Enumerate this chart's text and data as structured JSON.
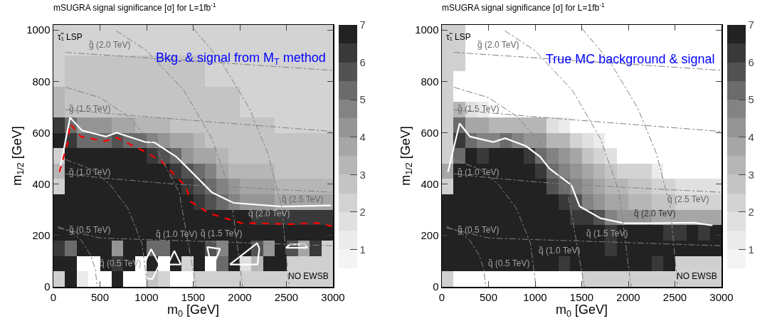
{
  "chart_data": [
    {
      "type": "heatmap",
      "title": "mSUGRA signal significance [σ] for L=1fb$^{-1}$",
      "xlabel": "m$_{0}$ [GeV]",
      "ylabel": "m$_{1/2}$ [GeV]",
      "x": [
        62.5,
        187.5,
        312.5,
        437.5,
        562.5,
        687.5,
        812.5,
        937.5,
        1062.5,
        1187.5,
        1312.5,
        1437.5,
        1562.5,
        1687.5,
        1812.5,
        1937.5,
        2062.5,
        2187.5,
        2312.5,
        2437.5,
        2562.5,
        2687.5,
        2812.5,
        2937.5
      ],
      "y": [
        990,
        930,
        870,
        810,
        750,
        690,
        630,
        570,
        510,
        450,
        390,
        330,
        270,
        210,
        150,
        90,
        30
      ],
      "cells": [
        [
          null,
          2.25,
          2.25,
          2.25,
          2.25,
          2.25,
          2.25,
          2.25,
          2.25,
          2.25,
          2.25,
          2.25,
          2.25,
          2.25,
          2.25,
          2.25,
          2.25,
          2.25,
          2.25,
          2.25,
          2.25,
          2.25,
          2.25,
          2.25
        ],
        [
          null,
          2.25,
          2.25,
          2.25,
          2.25,
          2.25,
          2.25,
          2.25,
          2.25,
          2.25,
          2.25,
          2.25,
          2.25,
          2.25,
          2.25,
          2.25,
          2.25,
          2.25,
          2.25,
          2.25,
          2.25,
          2.25,
          2.25,
          2.25
        ],
        [
          null,
          2.75,
          2.75,
          2.75,
          2.75,
          2.75,
          2.75,
          2.75,
          2.75,
          2.75,
          2.75,
          2.75,
          2.75,
          2.25,
          2.25,
          2.25,
          2.25,
          2.25,
          2.25,
          2.25,
          2.25,
          2.25,
          2.25,
          2.25
        ],
        [
          null,
          2.75,
          2.75,
          2.75,
          2.75,
          2.75,
          2.75,
          2.75,
          2.75,
          2.75,
          2.75,
          2.75,
          2.75,
          2.25,
          2.25,
          2.25,
          2.25,
          2.25,
          2.25,
          2.25,
          2.25,
          2.25,
          2.25,
          2.25
        ],
        [
          3.25,
          2.75,
          2.75,
          2.75,
          2.75,
          2.75,
          2.75,
          2.75,
          2.75,
          2.75,
          2.75,
          2.75,
          2.75,
          2.75,
          2.75,
          2.75,
          2.25,
          2.25,
          2.25,
          2.25,
          2.25,
          2.25,
          2.25,
          2.25
        ],
        [
          3.25,
          2.75,
          2.75,
          2.75,
          2.75,
          2.75,
          2.75,
          2.75,
          2.75,
          2.75,
          2.75,
          2.75,
          2.75,
          2.75,
          2.75,
          2.75,
          2.25,
          2.25,
          2.25,
          2.25,
          2.25,
          2.25,
          2.25,
          2.25
        ],
        [
          6.25,
          5.25,
          4.25,
          4.25,
          4.25,
          3.75,
          3.75,
          3.25,
          3.25,
          3.25,
          2.75,
          2.75,
          2.75,
          2.75,
          2.75,
          2.75,
          2.75,
          2.75,
          2.75,
          2.25,
          2.25,
          2.25,
          2.25,
          2.25
        ],
        [
          6.75,
          6.25,
          5.25,
          5.25,
          5.25,
          5.75,
          5.25,
          5.25,
          4.75,
          4.25,
          3.75,
          3.75,
          3.25,
          2.75,
          2.75,
          2.75,
          2.75,
          2.75,
          2.75,
          2.75,
          2.75,
          2.75,
          2.75,
          2.75
        ],
        [
          null,
          7,
          7,
          7,
          7,
          7,
          7,
          7,
          6.25,
          5.75,
          5.25,
          4.25,
          3.75,
          3.75,
          3.25,
          2.75,
          2.75,
          2.75,
          2.75,
          2.75,
          2.75,
          2.75,
          2.75,
          2.75
        ],
        [
          3.25,
          7,
          7,
          7,
          7,
          7,
          7,
          7,
          7,
          7,
          6.25,
          5.75,
          5.25,
          4.75,
          3.75,
          3.25,
          3.25,
          3.25,
          3.25,
          2.75,
          2.75,
          2.75,
          2.75,
          2.75
        ],
        [
          null,
          7,
          7,
          7,
          7,
          7,
          7,
          7,
          7,
          7,
          7,
          6.25,
          5.75,
          5.25,
          4.75,
          4.25,
          3.75,
          3.75,
          3.75,
          3.25,
          3.25,
          3.25,
          3.25,
          3.25
        ],
        [
          7,
          7,
          7,
          7,
          7,
          7,
          7,
          7,
          7,
          7,
          7,
          7,
          6.25,
          5.75,
          5.25,
          4.75,
          4.25,
          4.25,
          4.25,
          3.75,
          3.75,
          3.75,
          3.75,
          3.75
        ],
        [
          7,
          7,
          7,
          7,
          7,
          7,
          7,
          7,
          7,
          7,
          7,
          7,
          7,
          7,
          7,
          6.75,
          6.75,
          6.25,
          6.25,
          6.25,
          6.25,
          6.25,
          6.25,
          6.25
        ],
        [
          7,
          7,
          7,
          7,
          7,
          7,
          7,
          7,
          7,
          7,
          7,
          7,
          7,
          7,
          7,
          7,
          7,
          7,
          7,
          7,
          7,
          7,
          7,
          7
        ],
        [
          6.25,
          5.25,
          7,
          7,
          7,
          4.25,
          7,
          6.75,
          5.25,
          5.25,
          6.75,
          7,
          7,
          5.75,
          4.75,
          7,
          6.75,
          5.75,
          4.25,
          7,
          5.75,
          3.75,
          6.25,
          null
        ],
        [
          7,
          7,
          0.25,
          0.25,
          7,
          6.25,
          7,
          0.25,
          7,
          0.25,
          7,
          2.25,
          7,
          0.25,
          5.25,
          7,
          1.75,
          3.25,
          7,
          7,
          null,
          null,
          null,
          null
        ],
        [
          null,
          7,
          1.25,
          0.25,
          0.25,
          7,
          0.25,
          0.25,
          2.75,
          2.25,
          0.25,
          0.25,
          null,
          null,
          null,
          null,
          null,
          null,
          null,
          null,
          null,
          null,
          null,
          null
        ]
      ],
      "colors": [
        "#ffffff",
        "#f4f4f4",
        "#ebebeb",
        "#e0e0e0",
        "#d3d3d3",
        "#c4c4c4",
        "#b6b6b6",
        "#a6a6a6",
        "#959595",
        "#838383",
        "#6b6b6b",
        "#525252",
        "#393939",
        "#222222"
      ],
      "clim": [
        0,
        7
      ],
      "cticks": [
        1,
        2,
        3,
        4,
        5,
        6,
        7
      ],
      "xlim": [
        0,
        3000
      ],
      "xticks": [
        0,
        500,
        1000,
        1500,
        2000,
        2500,
        3000
      ],
      "ylim": [
        0,
        1020
      ],
      "yticks": [
        0,
        200,
        400,
        600,
        800,
        1000
      ],
      "series": [
        {
          "type": "line",
          "color": "#ffffff",
          "line_style": "solid",
          "x": [
            64,
            179,
            307,
            563,
            678,
            985,
            1087,
            1240,
            1318,
            1624,
            1701,
            1931,
            2443,
            2980
          ],
          "values": [
            447,
            659,
            609,
            585,
            600,
            564,
            562,
            525,
            507,
            396,
            368,
            327,
            313,
            317
          ]
        },
        {
          "type": "line",
          "color": "#ffffff",
          "line_style": "solid",
          "x": [
            1228,
            1298,
            1368
          ],
          "values": [
            87,
            140,
            87
          ]
        },
        {
          "type": "line",
          "color": "#ffffff",
          "line_style": "solid",
          "x": [
            1228,
            1368
          ],
          "values": [
            87,
            87
          ]
        },
        {
          "type": "line",
          "color": "#ffffff",
          "line_style": "solid",
          "x": [
            1650,
            1790
          ],
          "values": [
            155,
            148
          ]
        },
        {
          "type": "line",
          "color": "#ffffff",
          "line_style": "solid",
          "x": [
            1650,
            1690,
            1720,
            1790
          ],
          "values": [
            155,
            87,
            87,
            148
          ]
        },
        {
          "type": "line",
          "color": "#ffffff",
          "line_style": "solid",
          "x": [
            1893,
            2185,
            2210
          ],
          "values": [
            87,
            170,
            150
          ]
        },
        {
          "type": "line",
          "color": "#ffffff",
          "line_style": "solid",
          "x": [
            1893,
            2190,
            2210
          ],
          "values": [
            87,
            87,
            150
          ]
        },
        {
          "type": "line",
          "color": "#ffffff",
          "line_style": "solid",
          "x": [
            2494,
            2540,
            2700,
            2725
          ],
          "values": [
            152,
            165,
            165,
            152
          ]
        },
        {
          "type": "line",
          "color": "#ffffff",
          "line_style": "solid",
          "x": [
            2494,
            2725
          ],
          "values": [
            152,
            152
          ]
        },
        {
          "type": "line",
          "color": "#ffffff",
          "line_style": "solid",
          "x": [
            934,
            1000,
            1049,
            1138
          ],
          "values": [
            36,
            110,
            147,
            87
          ]
        },
        {
          "type": "line",
          "color": "#ffffff",
          "line_style": "solid",
          "x": [
            934,
            1061,
            1138
          ],
          "values": [
            36,
            30,
            87
          ]
        },
        {
          "type": "line",
          "color": "#ff0000",
          "line_style": "dashed",
          "x": [
            64,
            153,
            179,
            294,
            550,
            678,
            985,
            1164,
            1318,
            1420,
            1471,
            1676,
            2009,
            2571,
            2827,
            3000
          ],
          "values": [
            447,
            562,
            636,
            585,
            567,
            581,
            526,
            488,
            428,
            392,
            332,
            286,
            249,
            244,
            249,
            235
          ]
        },
        {
          "type": "line",
          "color": "#808080",
          "line_style": "dotted",
          "x": [
            50,
            200,
            300,
            400,
            450,
            470
          ],
          "values": [
            234,
            213,
            181,
            123,
            68,
            0
          ]
        },
        {
          "type": "line",
          "color": "#808080",
          "line_style": "dotted",
          "x": [
            130,
            400,
            600,
            800,
            950,
            1010
          ],
          "values": [
            496,
            459,
            402,
            305,
            170,
            0
          ]
        },
        {
          "type": "line",
          "color": "#808080",
          "line_style": "dotted",
          "x": [
            130,
            500,
            800,
            1100,
            1350,
            1530
          ],
          "values": [
            777,
            737,
            665,
            542,
            367,
            0
          ]
        },
        {
          "type": "line",
          "color": "#808080",
          "line_style": "dotted",
          "x": [
            675,
            1000,
            1400,
            1700,
            1900,
            2030
          ],
          "values": [
            997,
            920,
            765,
            578,
            372,
            0
          ]
        },
        {
          "type": "line",
          "color": "#808080",
          "line_style": "dotted",
          "x": [
            1500,
            1800,
            2100,
            2300,
            2450,
            2530
          ],
          "values": [
            1007,
            878,
            697,
            521,
            312,
            0
          ]
        },
        {
          "type": "line",
          "color": "#808080",
          "line_style": "dotted",
          "x": [
            50,
            500,
            3000
          ],
          "values": [
            230,
            190,
            160
          ]
        },
        {
          "type": "line",
          "color": "#808080",
          "line_style": "dotted",
          "x": [
            130,
            500,
            1300,
            3000
          ],
          "values": [
            440,
            425,
            400,
            368
          ]
        },
        {
          "type": "line",
          "color": "#808080",
          "line_style": "dotted",
          "x": [
            130,
            900,
            3000
          ],
          "values": [
            690,
            665,
            605
          ]
        },
        {
          "type": "line",
          "color": "#808080",
          "line_style": "dotted",
          "x": [
            130,
            3000
          ],
          "values": [
            913,
            843
          ]
        }
      ],
      "annotations": [
        "Bkg. & signal from M$_{T}$ method",
        "τ̃₁ LSP",
        "g̃ (2.0 TeV)",
        "g̃ (1.5 TeV)",
        "g̃ (1.0 TeV)",
        "g̃ (0.5 TeV)",
        "q̃ (0.5 TeV)",
        "q̃ (1.0 TeV)",
        "q̃ (1.5 TeV)",
        "q̃ (2.0 TeV)",
        "q̃ (2.5 TeV)",
        "NO EWSB"
      ]
    },
    {
      "type": "heatmap",
      "title": "mSUGRA signal significance [σ] for L=1fb$^{-1}$",
      "xlabel": "m$_{0}$ [GeV]",
      "ylabel": "m$_{1/2}$ [GeV]",
      "x": [
        62.5,
        187.5,
        312.5,
        437.5,
        562.5,
        687.5,
        812.5,
        937.5,
        1062.5,
        1187.5,
        1312.5,
        1437.5,
        1562.5,
        1687.5,
        1812.5,
        1937.5,
        2062.5,
        2187.5,
        2312.5,
        2437.5,
        2562.5,
        2687.5,
        2812.5,
        2937.5
      ],
      "y": [
        990,
        930,
        870,
        810,
        750,
        690,
        630,
        570,
        510,
        450,
        390,
        330,
        270,
        210,
        150,
        90,
        30
      ],
      "cells": [
        [
          null,
          null,
          0.25,
          0.25,
          0.25,
          0.25,
          0.25,
          0.25,
          0.25,
          0.25,
          0.25,
          0.25,
          0.25,
          0.25,
          0.25,
          0.25,
          0.25,
          0.25,
          0.25,
          0.25,
          0.25,
          0.25,
          0.25,
          0.25
        ],
        [
          null,
          null,
          0.25,
          0.25,
          0.25,
          0.25,
          0.25,
          0.25,
          0.25,
          0.25,
          0.25,
          0.25,
          0.25,
          0.25,
          0.25,
          0.25,
          0.25,
          0.25,
          0.25,
          0.25,
          0.25,
          0.25,
          0.25,
          0.25
        ],
        [
          null,
          null,
          0.25,
          0.25,
          0.25,
          0.25,
          0.25,
          0.25,
          0.25,
          0.25,
          0.25,
          0.25,
          0.25,
          0.25,
          0.25,
          0.25,
          0.25,
          0.25,
          0.25,
          0.25,
          0.25,
          0.25,
          0.25,
          0.25
        ],
        [
          null,
          0.25,
          0.25,
          0.25,
          0.25,
          0.25,
          0.25,
          0.25,
          0.25,
          0.25,
          0.25,
          0.25,
          0.25,
          0.25,
          0.25,
          0.25,
          0.25,
          0.25,
          0.25,
          0.25,
          0.25,
          0.25,
          0.25,
          0.25
        ],
        [
          null,
          0.25,
          0.25,
          0.25,
          0.25,
          0.25,
          0.25,
          0.25,
          0.25,
          0.25,
          0.25,
          0.25,
          0.25,
          0.25,
          0.25,
          0.25,
          0.25,
          0.25,
          0.25,
          0.25,
          0.25,
          0.25,
          0.25,
          0.25
        ],
        [
          null,
          3.25,
          1.75,
          1.25,
          0.25,
          0.25,
          0.25,
          0.25,
          0.25,
          0.25,
          0.25,
          0.25,
          0.25,
          0.25,
          0.25,
          0.25,
          0.25,
          0.25,
          0.25,
          0.25,
          0.25,
          0.25,
          0.25,
          0.25
        ],
        [
          null,
          5.25,
          3.75,
          3.75,
          3.25,
          3.25,
          3.25,
          3.25,
          3.25,
          1.75,
          1.25,
          0.25,
          0.25,
          0.25,
          0.25,
          0.25,
          0.25,
          0.25,
          0.25,
          0.25,
          0.25,
          0.25,
          0.25,
          0.25
        ],
        [
          null,
          6.25,
          5.25,
          4.75,
          4.75,
          5.25,
          4.75,
          4.25,
          4.25,
          3.25,
          3.25,
          2.25,
          1.75,
          1.25,
          0.25,
          0.25,
          0.25,
          0.25,
          0.25,
          0.25,
          0.25,
          0.25,
          0.25,
          0.25
        ],
        [
          null,
          5.25,
          7,
          6.25,
          7,
          7,
          6.75,
          6.25,
          5.25,
          4.75,
          4.25,
          3.75,
          2.75,
          2.25,
          1.75,
          0.25,
          0.25,
          0.25,
          0.25,
          0.25,
          0.25,
          0.25,
          0.25,
          0.25
        ],
        [
          3.75,
          7,
          7,
          7,
          7,
          7,
          7,
          7,
          6.25,
          5.25,
          4.75,
          4.25,
          3.75,
          3.25,
          2.75,
          2.25,
          2.25,
          2.25,
          1.25,
          0.25,
          0.25,
          0.25,
          0.25,
          0.25
        ],
        [
          null,
          7,
          7,
          7,
          7,
          7,
          7,
          7,
          7,
          5.75,
          5.25,
          4.75,
          4.25,
          3.75,
          3.25,
          3.25,
          2.75,
          2.75,
          2.25,
          2.25,
          1.75,
          1.75,
          1.75,
          1.75
        ],
        [
          7,
          7,
          7,
          7,
          7,
          7,
          7,
          7,
          7,
          7,
          6.25,
          5.75,
          4.75,
          4.25,
          3.75,
          3.75,
          3.25,
          3.25,
          2.75,
          2.75,
          2.25,
          2.25,
          2.25,
          2.25
        ],
        [
          7,
          7,
          7,
          7,
          7,
          7,
          7,
          7,
          7,
          7,
          7,
          6.25,
          6.25,
          5.75,
          4.75,
          4.25,
          4.25,
          4.25,
          3.75,
          3.75,
          3.75,
          3.75,
          3.75,
          3.75
        ],
        [
          7,
          7,
          7,
          7,
          7,
          7,
          7,
          7,
          7,
          7,
          7,
          7,
          7,
          7,
          6.25,
          7,
          7,
          7,
          7,
          6.25,
          6.25,
          7,
          6.25,
          7
        ],
        [
          7,
          7,
          7,
          7,
          7,
          7,
          7,
          7,
          7,
          7,
          7,
          7,
          7,
          7,
          6.25,
          7,
          7,
          7,
          7,
          7,
          7,
          7,
          7,
          7
        ],
        [
          7,
          7,
          7,
          7,
          7,
          7,
          7,
          7,
          7,
          7,
          6.25,
          7,
          7,
          7,
          7,
          7,
          7,
          7,
          6.25,
          7,
          null,
          null,
          null,
          null
        ],
        [
          null,
          0.25,
          0.25,
          0.25,
          0.25,
          0.25,
          0.25,
          0.25,
          0.25,
          0.25,
          0.25,
          0.25,
          null,
          null,
          null,
          null,
          null,
          null,
          null,
          null,
          null,
          null,
          null,
          null
        ]
      ],
      "colors": [
        "#ffffff",
        "#f4f4f4",
        "#ebebeb",
        "#e0e0e0",
        "#d3d3d3",
        "#c4c4c4",
        "#b6b6b6",
        "#a6a6a6",
        "#959595",
        "#838383",
        "#6b6b6b",
        "#525252",
        "#393939",
        "#222222"
      ],
      "clim": [
        0,
        7
      ],
      "cticks": [
        1,
        2,
        3,
        4,
        5,
        6,
        7
      ],
      "xlim": [
        0,
        3000
      ],
      "xticks": [
        0,
        500,
        1000,
        1500,
        2000,
        2500,
        3000
      ],
      "ylim": [
        0,
        1020
      ],
      "yticks": [
        0,
        200,
        400,
        600,
        800,
        1000
      ],
      "series": [
        {
          "type": "line",
          "color": "#ffffff",
          "line_style": "solid",
          "x": [
            65,
            190,
            302,
            553,
            678,
            903,
            1053,
            1153,
            1390,
            1478,
            1703,
            1953,
            2253,
            2703,
            2903
          ],
          "values": [
            447,
            636,
            585,
            564,
            579,
            548,
            507,
            461,
            396,
            313,
            267,
            248,
            248,
            250,
            239
          ]
        },
        {
          "type": "line",
          "color": "#808080",
          "line_style": "dotted",
          "x": [
            50,
            200,
            300,
            400,
            450,
            470
          ],
          "values": [
            234,
            213,
            181,
            123,
            68,
            0
          ]
        },
        {
          "type": "line",
          "color": "#808080",
          "line_style": "dotted",
          "x": [
            130,
            400,
            600,
            800,
            950,
            1010
          ],
          "values": [
            496,
            459,
            402,
            305,
            170,
            0
          ]
        },
        {
          "type": "line",
          "color": "#808080",
          "line_style": "dotted",
          "x": [
            130,
            500,
            800,
            1100,
            1350,
            1530
          ],
          "values": [
            777,
            737,
            665,
            542,
            367,
            0
          ]
        },
        {
          "type": "line",
          "color": "#808080",
          "line_style": "dotted",
          "x": [
            675,
            1000,
            1400,
            1700,
            1900,
            2030
          ],
          "values": [
            997,
            920,
            765,
            578,
            372,
            0
          ]
        },
        {
          "type": "line",
          "color": "#808080",
          "line_style": "dotted",
          "x": [
            1500,
            1800,
            2100,
            2300,
            2450,
            2530
          ],
          "values": [
            1007,
            878,
            697,
            521,
            312,
            0
          ]
        },
        {
          "type": "line",
          "color": "#808080",
          "line_style": "dotted",
          "x": [
            50,
            500,
            3000
          ],
          "values": [
            230,
            190,
            160
          ]
        },
        {
          "type": "line",
          "color": "#808080",
          "line_style": "dotted",
          "x": [
            130,
            500,
            1300,
            3000
          ],
          "values": [
            440,
            425,
            400,
            368
          ]
        },
        {
          "type": "line",
          "color": "#808080",
          "line_style": "dotted",
          "x": [
            130,
            900,
            3000
          ],
          "values": [
            690,
            665,
            605
          ]
        },
        {
          "type": "line",
          "color": "#808080",
          "line_style": "dotted",
          "x": [
            130,
            3000
          ],
          "values": [
            913,
            843
          ]
        }
      ],
      "annotations": [
        "True MC background & signal",
        "τ̃₁ LSP",
        "g̃ (2.0 TeV)",
        "g̃ (1.5 TeV)",
        "g̃ (1.0 TeV)",
        "g̃ (0.5 TeV)",
        "q̃ (0.5 TeV)",
        "q̃ (1.0 TeV)",
        "q̃ (1.5 TeV)",
        "q̃ (2.0 TeV)",
        "q̃ (2.5 TeV)",
        "NO EWSB"
      ]
    }
  ]
}
